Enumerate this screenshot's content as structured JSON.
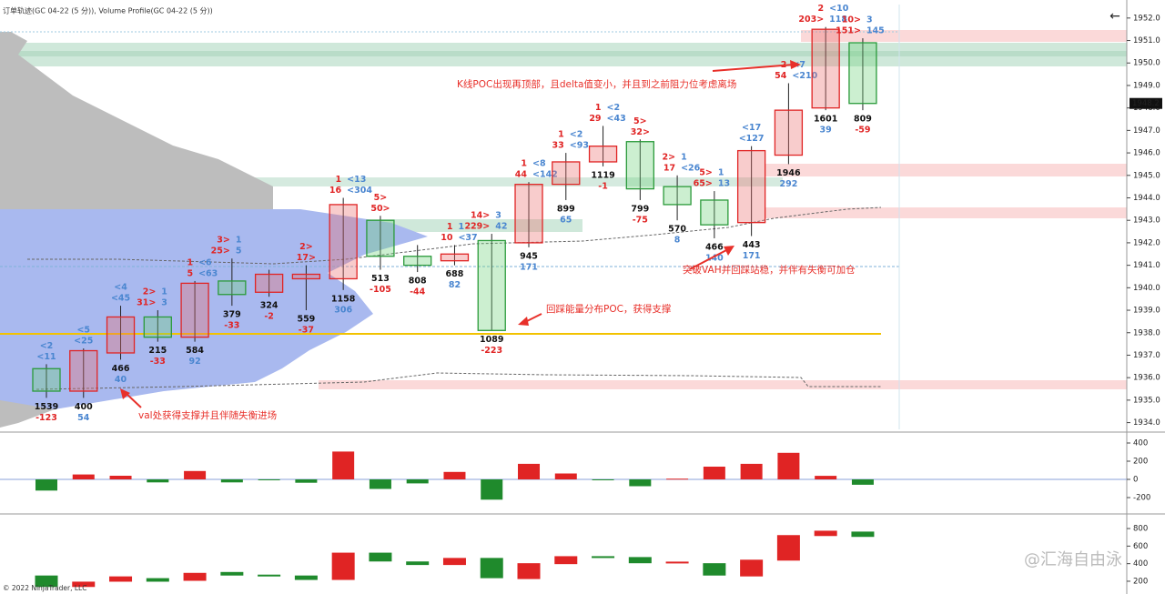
{
  "header": "订单轨迹(GC 04-22 (5 分)), Volume Profile(GC 04-22 (5 分))",
  "footer": "© 2022 NinjaTrader, LLC",
  "watermark": "@汇海自由泳",
  "chart_data": [
    {
      "type": "candlestick",
      "open": [
        1936.4,
        1935.4,
        1937.1,
        1938.7,
        1937.8,
        1940.3,
        1939.8,
        1940.4,
        1940.4,
        1943.0,
        1941.4,
        1941.2,
        1942.1,
        1942.0,
        1944.6,
        1945.6,
        1946.5,
        1944.5,
        1943.9,
        1942.9,
        1945.9,
        1948.0,
        1950.9
      ],
      "high": [
        1936.6,
        1937.3,
        1939.2,
        1939.0,
        1940.3,
        1941.3,
        1940.8,
        1941.0,
        1944.0,
        1943.2,
        1941.9,
        1941.9,
        1942.4,
        1944.7,
        1946.0,
        1947.2,
        1946.6,
        1945.0,
        1944.3,
        1946.3,
        1949.1,
        1951.6,
        1951.1
      ],
      "low": [
        1935.1,
        1935.1,
        1936.8,
        1937.6,
        1937.6,
        1939.2,
        1939.6,
        1939.0,
        1939.9,
        1940.8,
        1940.7,
        1941.0,
        1938.1,
        1941.8,
        1943.9,
        1945.4,
        1943.9,
        1943.0,
        1942.2,
        1942.3,
        1945.5,
        1947.9,
        1947.9
      ],
      "close": [
        1935.4,
        1937.2,
        1938.7,
        1937.8,
        1940.2,
        1939.7,
        1940.6,
        1940.6,
        1943.7,
        1941.4,
        1941.0,
        1941.5,
        1938.1,
        1944.6,
        1945.6,
        1946.3,
        1944.4,
        1943.7,
        1942.8,
        1946.1,
        1947.9,
        1951.5,
        1948.2
      ],
      "volume": [
        1539,
        400,
        466,
        215,
        584,
        379,
        324,
        559,
        1158,
        513,
        808,
        688,
        1089,
        945,
        899,
        1119,
        799,
        570,
        466,
        443,
        1946,
        1601,
        809
      ],
      "delta": [
        -123,
        54,
        40,
        -33,
        92,
        -33,
        -2,
        -37,
        306,
        -105,
        -44,
        82,
        -223,
        171,
        65,
        -1,
        -75,
        8,
        140,
        171,
        292,
        39,
        -59
      ],
      "top_labels": [
        [
          {
            "blue": "<2"
          },
          {
            "blue": "<11"
          }
        ],
        [
          {
            "blue": "<5"
          },
          {
            "blue": "<25"
          }
        ],
        [
          {
            "blue": "<4"
          },
          {
            "blue": "<45"
          }
        ],
        [
          {
            "red": "2>",
            "blue": "1"
          },
          {
            "red": "31>",
            "blue": "3"
          }
        ],
        [
          {
            "red": "1",
            "blue": "<6"
          },
          {
            "red": "5",
            "blue": "<63"
          }
        ],
        [
          {
            "red": "3>",
            "blue": "1"
          },
          {
            "red": "25>",
            "blue": "5"
          }
        ],
        [],
        [
          {
            "red": "2>"
          },
          {
            "red": "17>"
          }
        ],
        [
          {
            "red": "1",
            "blue": "<13"
          },
          {
            "red": "16",
            "blue": "<304"
          }
        ],
        [
          {
            "red": "5>"
          },
          {
            "red": "50>"
          }
        ],
        [],
        [
          {
            "red": "1",
            "blue": "1"
          },
          {
            "red": "10",
            "blue": "<37"
          }
        ],
        [
          {
            "red": "14>",
            "blue": "3"
          },
          {
            "red": "229>",
            "blue": "42"
          }
        ],
        [
          {
            "red": "1",
            "blue": "<8"
          },
          {
            "red": "44",
            "blue": "<142"
          }
        ],
        [
          {
            "red": "1",
            "blue": "<2"
          },
          {
            "red": "33",
            "blue": "<93"
          }
        ],
        [
          {
            "red": "1",
            "blue": "<2"
          },
          {
            "red": "29",
            "blue": "<43"
          }
        ],
        [
          {
            "red": "5>"
          },
          {
            "red": "32>"
          }
        ],
        [
          {
            "red": "2>",
            "blue": "1"
          },
          {
            "red": "17",
            "blue": "<26"
          }
        ],
        [
          {
            "red": "5>",
            "blue": "1"
          },
          {
            "red": "65>",
            "blue": "13"
          }
        ],
        [
          {
            "blue": "<17"
          },
          {
            "blue": "<127"
          }
        ],
        [
          {
            "red": "2",
            "blue": "<7"
          },
          {
            "red": "54",
            "blue": "<210"
          }
        ],
        [
          {
            "red": "2",
            "blue": "<10"
          },
          {
            "red": "203>",
            "blue": "118"
          }
        ],
        [
          {
            "red": "10>",
            "blue": "3"
          },
          {
            "red": "151>",
            "blue": "145"
          }
        ]
      ],
      "up_color": "#e02424",
      "down_color": "#2a9a3a",
      "ylim": [
        1933.7,
        1952.6
      ],
      "yticks": [
        {
          "value": 1934,
          "label": "1934.0"
        },
        {
          "value": 1935,
          "label": "1935.0"
        },
        {
          "value": 1936,
          "label": "1936.0"
        },
        {
          "value": 1937,
          "label": "1937.0"
        },
        {
          "value": 1938,
          "label": "1938.0"
        },
        {
          "value": 1939,
          "label": "1939.0"
        },
        {
          "value": 1940,
          "label": "1940.0"
        },
        {
          "value": 1941,
          "label": "1941.0"
        },
        {
          "value": 1942,
          "label": "1942.0"
        },
        {
          "value": 1943,
          "label": "1943.0"
        },
        {
          "value": 1944,
          "label": "1944.0"
        },
        {
          "value": 1945,
          "label": "1945.0"
        },
        {
          "value": 1946,
          "label": "1946.0"
        },
        {
          "value": 1947,
          "label": "1947.0"
        },
        {
          "value": 1948,
          "label": "1948.0"
        },
        {
          "value": 1949,
          "label": "1949.0"
        },
        {
          "value": 1950,
          "label": "1950.0"
        },
        {
          "value": 1951,
          "label": "1951.0"
        },
        {
          "value": 1952,
          "label": "1952.0"
        }
      ],
      "last_price": {
        "value": 1948.2,
        "label": "1948.2"
      },
      "annotations": [
        "K线POC出现再顶部，且delta值变小，并且到之前阻力位考虑离场",
        "回踩能量分布POC，获得支撑",
        "突破VAH并回踩站稳，并伴有失衡可加仓",
        "val处获得支撑并且伴随失衡进场"
      ]
    },
    {
      "type": "bar",
      "values": [
        -123,
        54,
        40,
        -33,
        92,
        -33,
        -2,
        -37,
        306,
        -105,
        -44,
        82,
        -223,
        171,
        65,
        -1,
        -75,
        8,
        140,
        171,
        292,
        39,
        -59
      ],
      "up_color": "#e02424",
      "down_color": "#1f8a2c",
      "ylim": [
        -350,
        490
      ],
      "yticks": [
        400,
        200,
        0,
        -200
      ]
    },
    {
      "type": "candlestick",
      "open": [
        260,
        140,
        200,
        230,
        210,
        300,
        270,
        260,
        220,
        520,
        420,
        390,
        460,
        230,
        400,
        480,
        470,
        410,
        400,
        260,
        440,
        720,
        760
      ],
      "close": [
        140,
        190,
        250,
        200,
        290,
        270,
        268,
        220,
        520,
        430,
        390,
        460,
        240,
        400,
        480,
        479,
        410,
        418,
        270,
        440,
        720,
        770,
        710
      ],
      "up_color": "#e02424",
      "down_color": "#1f8a2c",
      "ylim": [
        65,
        935
      ],
      "yticks": [
        800,
        600,
        400,
        200
      ]
    }
  ]
}
